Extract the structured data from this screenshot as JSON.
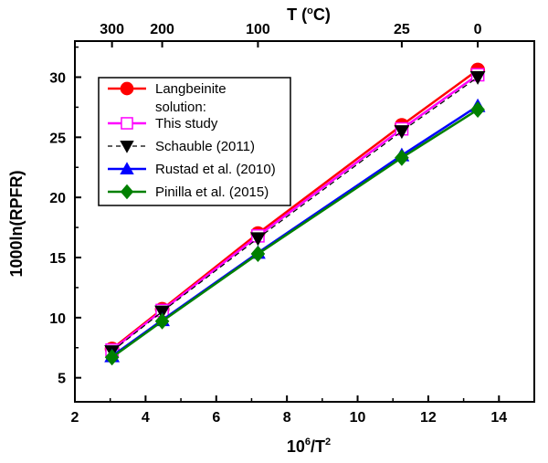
{
  "chart_data": {
    "type": "line",
    "xlabel_base": "10",
    "xlabel_sup1": "6",
    "xlabel_mid": "/T",
    "xlabel_sup2": "2",
    "ylabel": "1000ln(RPFR)",
    "top_label_pre": "T (",
    "top_label_deg": "o",
    "top_label_post": "C)",
    "xlim": [
      2,
      15
    ],
    "ylim": [
      3,
      33
    ],
    "xticks": [
      2,
      4,
      6,
      8,
      10,
      12,
      14
    ],
    "yticks": [
      5,
      10,
      15,
      20,
      25,
      30
    ],
    "top_ticks": [
      {
        "label": "300",
        "x": 3.05
      },
      {
        "label": "200",
        "x": 4.47
      },
      {
        "label": "100",
        "x": 7.18
      },
      {
        "label": "25",
        "x": 11.25
      },
      {
        "label": "0",
        "x": 13.4
      }
    ],
    "x": [
      3.05,
      4.47,
      7.18,
      11.25,
      13.4
    ],
    "series": [
      {
        "name": "Langbeinite",
        "name_line2": "solution:",
        "values": [
          7.4,
          10.7,
          17.0,
          26.0,
          30.6
        ],
        "color": "#ff0000",
        "marker": "circle",
        "dash": false
      },
      {
        "name": "This study",
        "values": [
          7.3,
          10.6,
          16.8,
          25.7,
          30.2
        ],
        "color": "#ff00ff",
        "marker": "open-square",
        "dash": false
      },
      {
        "name": "Schauble (2011)",
        "values": [
          7.2,
          10.5,
          16.6,
          25.5,
          30.0
        ],
        "color": "#000000",
        "marker": "down-triangle",
        "dash": true
      },
      {
        "name": "Rustad et al. (2010)",
        "values": [
          6.8,
          9.8,
          15.4,
          23.5,
          27.6
        ],
        "color": "#0000ff",
        "marker": "up-triangle",
        "dash": false
      },
      {
        "name": "Pinilla et al. (2015)",
        "values": [
          6.7,
          9.7,
          15.3,
          23.3,
          27.3
        ],
        "color": "#008000",
        "marker": "diamond",
        "dash": false
      }
    ]
  }
}
